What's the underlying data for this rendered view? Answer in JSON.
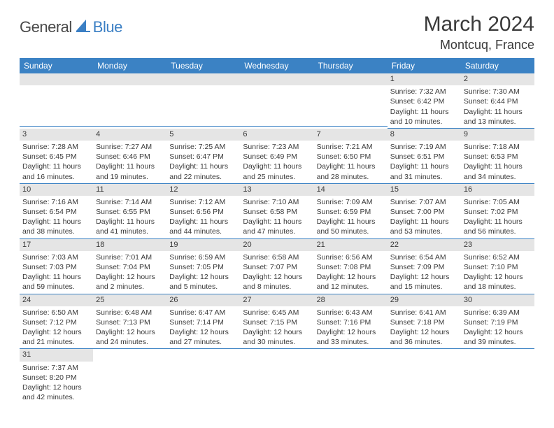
{
  "logo": {
    "part1": "General",
    "part2": "Blue"
  },
  "title": {
    "month": "March 2024",
    "location": "Montcuq, France"
  },
  "colors": {
    "header_bg": "#3b82c4",
    "header_text": "#ffffff",
    "daynum_bg": "#e5e5e5",
    "text": "#3a3a3a",
    "cell_border": "#3b82c4",
    "logo_blue": "#3b7fc4",
    "logo_gray": "#4a4a4a"
  },
  "weekdays": [
    "Sunday",
    "Monday",
    "Tuesday",
    "Wednesday",
    "Thursday",
    "Friday",
    "Saturday"
  ],
  "weeks": [
    [
      null,
      null,
      null,
      null,
      null,
      {
        "n": "1",
        "sr": "Sunrise: 7:32 AM",
        "ss": "Sunset: 6:42 PM",
        "dl1": "Daylight: 11 hours",
        "dl2": "and 10 minutes."
      },
      {
        "n": "2",
        "sr": "Sunrise: 7:30 AM",
        "ss": "Sunset: 6:44 PM",
        "dl1": "Daylight: 11 hours",
        "dl2": "and 13 minutes."
      }
    ],
    [
      {
        "n": "3",
        "sr": "Sunrise: 7:28 AM",
        "ss": "Sunset: 6:45 PM",
        "dl1": "Daylight: 11 hours",
        "dl2": "and 16 minutes."
      },
      {
        "n": "4",
        "sr": "Sunrise: 7:27 AM",
        "ss": "Sunset: 6:46 PM",
        "dl1": "Daylight: 11 hours",
        "dl2": "and 19 minutes."
      },
      {
        "n": "5",
        "sr": "Sunrise: 7:25 AM",
        "ss": "Sunset: 6:47 PM",
        "dl1": "Daylight: 11 hours",
        "dl2": "and 22 minutes."
      },
      {
        "n": "6",
        "sr": "Sunrise: 7:23 AM",
        "ss": "Sunset: 6:49 PM",
        "dl1": "Daylight: 11 hours",
        "dl2": "and 25 minutes."
      },
      {
        "n": "7",
        "sr": "Sunrise: 7:21 AM",
        "ss": "Sunset: 6:50 PM",
        "dl1": "Daylight: 11 hours",
        "dl2": "and 28 minutes."
      },
      {
        "n": "8",
        "sr": "Sunrise: 7:19 AM",
        "ss": "Sunset: 6:51 PM",
        "dl1": "Daylight: 11 hours",
        "dl2": "and 31 minutes."
      },
      {
        "n": "9",
        "sr": "Sunrise: 7:18 AM",
        "ss": "Sunset: 6:53 PM",
        "dl1": "Daylight: 11 hours",
        "dl2": "and 34 minutes."
      }
    ],
    [
      {
        "n": "10",
        "sr": "Sunrise: 7:16 AM",
        "ss": "Sunset: 6:54 PM",
        "dl1": "Daylight: 11 hours",
        "dl2": "and 38 minutes."
      },
      {
        "n": "11",
        "sr": "Sunrise: 7:14 AM",
        "ss": "Sunset: 6:55 PM",
        "dl1": "Daylight: 11 hours",
        "dl2": "and 41 minutes."
      },
      {
        "n": "12",
        "sr": "Sunrise: 7:12 AM",
        "ss": "Sunset: 6:56 PM",
        "dl1": "Daylight: 11 hours",
        "dl2": "and 44 minutes."
      },
      {
        "n": "13",
        "sr": "Sunrise: 7:10 AM",
        "ss": "Sunset: 6:58 PM",
        "dl1": "Daylight: 11 hours",
        "dl2": "and 47 minutes."
      },
      {
        "n": "14",
        "sr": "Sunrise: 7:09 AM",
        "ss": "Sunset: 6:59 PM",
        "dl1": "Daylight: 11 hours",
        "dl2": "and 50 minutes."
      },
      {
        "n": "15",
        "sr": "Sunrise: 7:07 AM",
        "ss": "Sunset: 7:00 PM",
        "dl1": "Daylight: 11 hours",
        "dl2": "and 53 minutes."
      },
      {
        "n": "16",
        "sr": "Sunrise: 7:05 AM",
        "ss": "Sunset: 7:02 PM",
        "dl1": "Daylight: 11 hours",
        "dl2": "and 56 minutes."
      }
    ],
    [
      {
        "n": "17",
        "sr": "Sunrise: 7:03 AM",
        "ss": "Sunset: 7:03 PM",
        "dl1": "Daylight: 11 hours",
        "dl2": "and 59 minutes."
      },
      {
        "n": "18",
        "sr": "Sunrise: 7:01 AM",
        "ss": "Sunset: 7:04 PM",
        "dl1": "Daylight: 12 hours",
        "dl2": "and 2 minutes."
      },
      {
        "n": "19",
        "sr": "Sunrise: 6:59 AM",
        "ss": "Sunset: 7:05 PM",
        "dl1": "Daylight: 12 hours",
        "dl2": "and 5 minutes."
      },
      {
        "n": "20",
        "sr": "Sunrise: 6:58 AM",
        "ss": "Sunset: 7:07 PM",
        "dl1": "Daylight: 12 hours",
        "dl2": "and 8 minutes."
      },
      {
        "n": "21",
        "sr": "Sunrise: 6:56 AM",
        "ss": "Sunset: 7:08 PM",
        "dl1": "Daylight: 12 hours",
        "dl2": "and 12 minutes."
      },
      {
        "n": "22",
        "sr": "Sunrise: 6:54 AM",
        "ss": "Sunset: 7:09 PM",
        "dl1": "Daylight: 12 hours",
        "dl2": "and 15 minutes."
      },
      {
        "n": "23",
        "sr": "Sunrise: 6:52 AM",
        "ss": "Sunset: 7:10 PM",
        "dl1": "Daylight: 12 hours",
        "dl2": "and 18 minutes."
      }
    ],
    [
      {
        "n": "24",
        "sr": "Sunrise: 6:50 AM",
        "ss": "Sunset: 7:12 PM",
        "dl1": "Daylight: 12 hours",
        "dl2": "and 21 minutes."
      },
      {
        "n": "25",
        "sr": "Sunrise: 6:48 AM",
        "ss": "Sunset: 7:13 PM",
        "dl1": "Daylight: 12 hours",
        "dl2": "and 24 minutes."
      },
      {
        "n": "26",
        "sr": "Sunrise: 6:47 AM",
        "ss": "Sunset: 7:14 PM",
        "dl1": "Daylight: 12 hours",
        "dl2": "and 27 minutes."
      },
      {
        "n": "27",
        "sr": "Sunrise: 6:45 AM",
        "ss": "Sunset: 7:15 PM",
        "dl1": "Daylight: 12 hours",
        "dl2": "and 30 minutes."
      },
      {
        "n": "28",
        "sr": "Sunrise: 6:43 AM",
        "ss": "Sunset: 7:16 PM",
        "dl1": "Daylight: 12 hours",
        "dl2": "and 33 minutes."
      },
      {
        "n": "29",
        "sr": "Sunrise: 6:41 AM",
        "ss": "Sunset: 7:18 PM",
        "dl1": "Daylight: 12 hours",
        "dl2": "and 36 minutes."
      },
      {
        "n": "30",
        "sr": "Sunrise: 6:39 AM",
        "ss": "Sunset: 7:19 PM",
        "dl1": "Daylight: 12 hours",
        "dl2": "and 39 minutes."
      }
    ],
    [
      {
        "n": "31",
        "sr": "Sunrise: 7:37 AM",
        "ss": "Sunset: 8:20 PM",
        "dl1": "Daylight: 12 hours",
        "dl2": "and 42 minutes."
      },
      null,
      null,
      null,
      null,
      null,
      null
    ]
  ]
}
